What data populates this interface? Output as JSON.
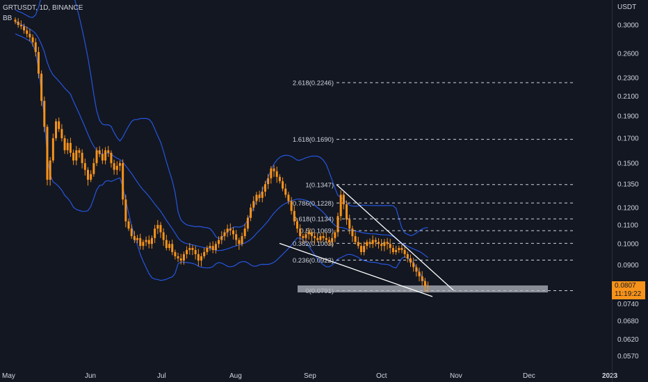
{
  "header": {
    "symbol_line": "GRTUSDT, 1D, BINANCE",
    "indicator": "BB"
  },
  "axis": {
    "currency": "USDT",
    "year_label": "2023"
  },
  "last_price": {
    "value": "0.0807",
    "countdown": "11:19:22"
  },
  "colors": {
    "background": "#131722",
    "candle": "#f7931a",
    "bands": "#2962ff",
    "trendline": "#ffffff",
    "fib": "#d1d4dc",
    "zone": "#b2b5be"
  },
  "chart_data": {
    "type": "candlestick",
    "y_scale": "log",
    "ylim": [
      0.0555,
      0.33
    ],
    "y_ticks": [
      "0.3000",
      "0.2600",
      "0.2300",
      "0.2100",
      "0.1900",
      "0.1700",
      "0.1500",
      "0.1350",
      "0.1200",
      "0.1100",
      "0.1000",
      "0.0900",
      "0.0740",
      "0.0680",
      "0.0620",
      "0.0570"
    ],
    "x_ticks": [
      "May",
      "Jun",
      "Jul",
      "Aug",
      "Sep",
      "Oct",
      "Nov",
      "Dec",
      "2023"
    ],
    "fib_levels": [
      {
        "ratio": "2.618",
        "price": 0.2246,
        "label": "2.618(0.2246)"
      },
      {
        "ratio": "1.618",
        "price": 0.169,
        "label": "1.618(0.1690)"
      },
      {
        "ratio": "1",
        "price": 0.1347,
        "label": "1(0.1347)"
      },
      {
        "ratio": "0.786",
        "price": 0.1228,
        "label": "0.786(0.1228)"
      },
      {
        "ratio": "0.618",
        "price": 0.1134,
        "label": "0.618(0.1134)"
      },
      {
        "ratio": "0.5",
        "price": 0.1069,
        "label": "0.5(0.1069)"
      },
      {
        "ratio": "0.382",
        "price": 0.1003,
        "label": "0.382(0.1003)"
      },
      {
        "ratio": "0.236",
        "price": 0.0922,
        "label": "0.236(0.0922)"
      },
      {
        "ratio": "0",
        "price": 0.0791,
        "label": "0(0.0791)"
      }
    ],
    "support_zone": [
      0.0784,
      0.0812
    ],
    "closes": [
      0.305,
      0.3,
      0.298,
      0.292,
      0.287,
      0.282,
      0.275,
      0.262,
      0.235,
      0.205,
      0.18,
      0.138,
      0.152,
      0.17,
      0.185,
      0.178,
      0.17,
      0.16,
      0.166,
      0.158,
      0.152,
      0.16,
      0.158,
      0.15,
      0.145,
      0.138,
      0.142,
      0.15,
      0.16,
      0.157,
      0.152,
      0.16,
      0.158,
      0.15,
      0.145,
      0.148,
      0.15,
      0.125,
      0.112,
      0.108,
      0.104,
      0.102,
      0.103,
      0.099,
      0.101,
      0.102,
      0.1,
      0.103,
      0.108,
      0.11,
      0.106,
      0.102,
      0.098,
      0.1,
      0.096,
      0.094,
      0.093,
      0.092,
      0.095,
      0.097,
      0.098,
      0.097,
      0.095,
      0.092,
      0.094,
      0.096,
      0.098,
      0.099,
      0.097,
      0.1,
      0.102,
      0.104,
      0.106,
      0.108,
      0.107,
      0.105,
      0.102,
      0.1,
      0.104,
      0.108,
      0.114,
      0.12,
      0.124,
      0.128,
      0.126,
      0.13,
      0.135,
      0.139,
      0.146,
      0.144,
      0.14,
      0.137,
      0.132,
      0.128,
      0.124,
      0.118,
      0.112,
      0.108,
      0.104,
      0.103,
      0.105,
      0.106,
      0.104,
      0.103,
      0.102,
      0.104,
      0.103,
      0.102,
      0.101,
      0.103,
      0.106,
      0.115,
      0.128,
      0.122,
      0.113,
      0.108,
      0.104,
      0.101,
      0.099,
      0.096,
      0.099,
      0.101,
      0.1,
      0.102,
      0.101,
      0.1,
      0.099,
      0.101,
      0.1,
      0.098,
      0.096,
      0.097,
      0.098,
      0.097,
      0.095,
      0.093,
      0.091,
      0.089,
      0.087,
      0.085,
      0.083,
      0.081,
      0.0807
    ]
  }
}
